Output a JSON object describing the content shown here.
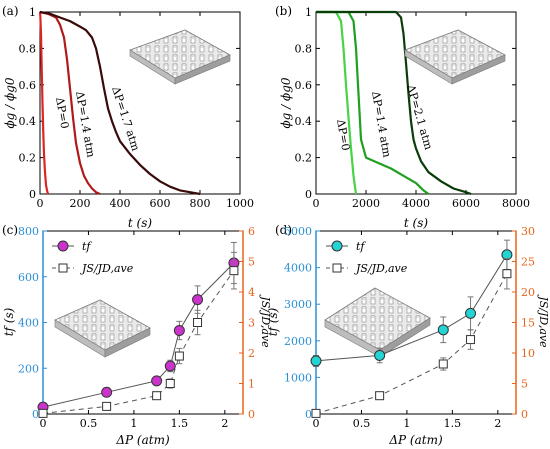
{
  "chart_data": [
    {
      "panel_label": "(a)",
      "type": "line",
      "xlabel": "t (s)",
      "ylabel": "ϕg / ϕg0",
      "xlim": [
        0,
        1000
      ],
      "ylim": [
        0,
        1
      ],
      "xticks": [
        "0",
        "200",
        "400",
        "600",
        "800",
        "1000"
      ],
      "yticks": [
        "0",
        "0.2",
        "0.4",
        "0.6",
        "0.8",
        "1"
      ],
      "series": [
        {
          "name": "ΔP=0",
          "color": "#e02424",
          "x": [
            0,
            2,
            5,
            8,
            12,
            16,
            20,
            25,
            30,
            35,
            40
          ],
          "y": [
            1.0,
            0.97,
            0.88,
            0.72,
            0.52,
            0.35,
            0.22,
            0.12,
            0.05,
            0.02,
            0.0
          ]
        },
        {
          "name": "ΔP=1.4 atm",
          "color": "#b01a1a",
          "x": [
            0,
            40,
            80,
            100,
            120,
            135,
            150,
            165,
            180,
            200,
            220,
            240,
            260,
            280,
            300
          ],
          "y": [
            1.0,
            0.99,
            0.97,
            0.93,
            0.86,
            0.74,
            0.58,
            0.42,
            0.28,
            0.17,
            0.1,
            0.06,
            0.03,
            0.01,
            0.0
          ]
        },
        {
          "name": "ΔP=1.7 atm",
          "color": "#3a0a0a",
          "x": [
            0,
            50,
            100,
            150,
            200,
            230,
            260,
            280,
            300,
            320,
            340,
            360,
            380,
            400,
            450,
            500,
            550,
            600,
            650,
            700,
            750,
            800
          ],
          "y": [
            1.0,
            0.99,
            0.97,
            0.95,
            0.92,
            0.9,
            0.86,
            0.8,
            0.7,
            0.58,
            0.47,
            0.4,
            0.34,
            0.29,
            0.22,
            0.16,
            0.11,
            0.07,
            0.04,
            0.02,
            0.01,
            0.0
          ]
        }
      ],
      "annotations": [
        "ΔP=0",
        "ΔP=1.4 atm",
        "ΔP=1.7 atm"
      ]
    },
    {
      "panel_label": "(b)",
      "type": "line",
      "xlabel": "t (s)",
      "ylabel": "ϕg / ϕg0",
      "xlim": [
        0,
        8000
      ],
      "ylim": [
        0,
        1
      ],
      "xticks": [
        "0",
        "2000",
        "4000",
        "6000",
        "8000"
      ],
      "yticks": [
        "0",
        "0.2",
        "0.4",
        "0.6",
        "0.8",
        "1"
      ],
      "series": [
        {
          "name": "ΔP=0",
          "color": "#45d445",
          "x": [
            0,
            800,
            1000,
            1100,
            1200,
            1300,
            1400,
            1500,
            1600
          ],
          "y": [
            1.0,
            1.0,
            0.95,
            0.8,
            0.6,
            0.42,
            0.25,
            0.1,
            0.0
          ]
        },
        {
          "name": "ΔP=1.4 atm",
          "color": "#20a020",
          "x": [
            0,
            1300,
            1500,
            1600,
            1700,
            1800,
            2000,
            2500,
            3000,
            3500,
            4000,
            4300,
            4500
          ],
          "y": [
            1.0,
            1.0,
            0.95,
            0.8,
            0.55,
            0.3,
            0.2,
            0.17,
            0.14,
            0.1,
            0.06,
            0.02,
            0.0
          ]
        },
        {
          "name": "ΔP=2.1 atm",
          "color": "#0b3d0b",
          "x": [
            0,
            3200,
            3400,
            3500,
            3600,
            3700,
            3800,
            3900,
            4000,
            4200,
            4500,
            5000,
            5500,
            6000,
            6200
          ],
          "y": [
            1.0,
            1.0,
            0.97,
            0.88,
            0.72,
            0.55,
            0.4,
            0.3,
            0.25,
            0.18,
            0.12,
            0.07,
            0.03,
            0.01,
            0.0
          ]
        }
      ],
      "annotations": [
        "ΔP=0",
        "ΔP=1.4 atm",
        "ΔP=2.1 atm"
      ]
    },
    {
      "panel_label": "(c)",
      "type": "scatter",
      "xlabel": "ΔP (atm)",
      "ylabel_left": "tf (s)",
      "ylabel_right": "JS/JD,ave",
      "xlim": [
        0,
        2.2
      ],
      "ylim_left": [
        0,
        800
      ],
      "ylim_right": [
        0,
        6
      ],
      "xticks": [
        "0",
        "0.5",
        "1",
        "1.5",
        "2"
      ],
      "yticks_left": [
        "0",
        "200",
        "400",
        "600",
        "800"
      ],
      "yticks_right": [
        "0",
        "1",
        "2",
        "3",
        "4",
        "5",
        "6"
      ],
      "left_axis_color": "#2b8fd6",
      "right_axis_color": "#e8641c",
      "legend_position": "top-left",
      "legend": [
        "tf",
        "JS/JD,ave"
      ],
      "series": [
        {
          "name": "tf",
          "axis": "left",
          "color": "#cc33cc",
          "x": [
            0,
            0.7,
            1.25,
            1.4,
            1.5,
            1.7,
            2.1
          ],
          "y": [
            30,
            95,
            145,
            210,
            365,
            500,
            660
          ],
          "err": [
            5,
            10,
            15,
            25,
            40,
            60,
            90
          ]
        },
        {
          "name": "JS/JD,ave",
          "axis": "right",
          "color": "#ffffff",
          "x": [
            0,
            0.7,
            1.25,
            1.4,
            1.5,
            1.7,
            2.1
          ],
          "y": [
            0.02,
            0.25,
            0.6,
            1.0,
            1.9,
            3.0,
            4.7
          ],
          "err": [
            0.01,
            0.05,
            0.1,
            0.15,
            0.25,
            0.4,
            0.6
          ]
        }
      ]
    },
    {
      "panel_label": "(d)",
      "type": "scatter",
      "xlabel": "ΔP (atm)",
      "ylabel_left": "tf (s)",
      "ylabel_right": "JS/JD,ave",
      "xlim": [
        0,
        2.2
      ],
      "ylim_left": [
        0,
        5000
      ],
      "ylim_right": [
        0,
        30
      ],
      "xticks": [
        "0",
        "0.5",
        "1",
        "1.5",
        "2"
      ],
      "yticks_left": [
        "0",
        "1000",
        "2000",
        "3000",
        "4000",
        "5000"
      ],
      "yticks_right": [
        "0",
        "5",
        "10",
        "15",
        "20",
        "25",
        "30"
      ],
      "left_axis_color": "#2b8fd6",
      "right_axis_color": "#e8641c",
      "legend_position": "top-left",
      "legend": [
        "tf",
        "JS/JD,ave"
      ],
      "series": [
        {
          "name": "tf",
          "axis": "left",
          "color": "#22d4d4",
          "x": [
            0,
            0.7,
            1.4,
            1.7,
            2.1
          ],
          "y": [
            1450,
            1600,
            2300,
            2750,
            4350
          ],
          "err": [
            150,
            200,
            350,
            450,
            400
          ]
        },
        {
          "name": "JS/JD,ave",
          "axis": "right",
          "color": "#ffffff",
          "x": [
            0,
            0.7,
            1.4,
            1.7,
            2.1
          ],
          "y": [
            0.1,
            3.0,
            8.2,
            12.2,
            23.0
          ],
          "err": [
            0.05,
            0.3,
            1.0,
            1.6,
            2.5
          ]
        }
      ]
    }
  ]
}
